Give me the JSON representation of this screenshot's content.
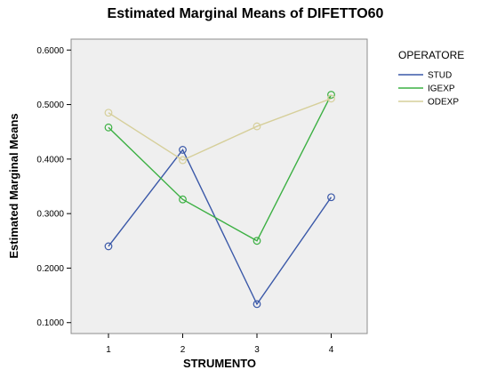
{
  "chart_data": {
    "type": "line",
    "title": "Estimated Marginal Means of DIFETTO60",
    "xlabel": "STRUMENTO",
    "ylabel": "Estimated Marginal Means",
    "categories": [
      "1",
      "2",
      "3",
      "4"
    ],
    "ylim": [
      0.08,
      0.62
    ],
    "yticks": [
      "0.1000",
      "0.2000",
      "0.3000",
      "0.4000",
      "0.5000",
      "0.6000"
    ],
    "ytick_values": [
      0.1,
      0.2,
      0.3,
      0.4,
      0.5,
      0.6
    ],
    "grid": false,
    "plot_background": "#efefef",
    "marker": "open-circle",
    "legend": {
      "title": "OPERATORE",
      "placement": "right"
    },
    "series": [
      {
        "name": "STUD",
        "color": "#3a58a8",
        "values": [
          0.24,
          0.417,
          0.134,
          0.33
        ]
      },
      {
        "name": "IGEXP",
        "color": "#3cb043",
        "values": [
          0.458,
          0.326,
          0.25,
          0.518
        ]
      },
      {
        "name": "ODEXP",
        "color": "#d6cf9a",
        "values": [
          0.485,
          0.398,
          0.46,
          0.511
        ]
      }
    ]
  }
}
